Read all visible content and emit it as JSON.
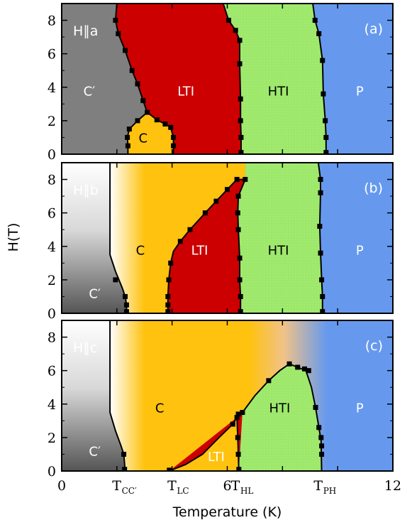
{
  "chart_data": {
    "type": "area",
    "title": "",
    "xlabel": "Temperature (K)",
    "ylabel": "H(T)",
    "xlim": [
      0,
      12
    ],
    "ylim": [
      0,
      9
    ],
    "x_tick_labels": [
      "0",
      "6",
      "12"
    ],
    "x_ticks": [
      0,
      6,
      12
    ],
    "transition_labels": [
      {
        "main": "T",
        "sub": "CC′",
        "x": 2.2
      },
      {
        "main": "T",
        "sub": "LC",
        "x": 4.2
      },
      {
        "main": "T",
        "sub": "HL",
        "x": 6.5
      },
      {
        "main": "T",
        "sub": "PH",
        "x": 9.5
      }
    ],
    "y_ticks": [
      0,
      2,
      4,
      6,
      8
    ],
    "y_tick_labels": [
      "0",
      "2",
      "4",
      "6",
      "8"
    ],
    "colors": {
      "C_prime": "#7f7f7f",
      "C": "#ffc20e",
      "LTI": "#cc0000",
      "HTI": "#9de86a",
      "P": "#6699ee",
      "marker": "#000000"
    },
    "panels": [
      {
        "id": "a",
        "panel_label": "(a)",
        "field_label": "H∥a",
        "phases": [
          {
            "name": "C′",
            "label_pos": [
              1.0,
              3.8
            ]
          },
          {
            "name": "C",
            "label_pos": [
              2.95,
              1.0
            ]
          },
          {
            "name": "LTI",
            "label_pos": [
              4.5,
              3.8
            ]
          },
          {
            "name": "HTI",
            "label_pos": [
              7.85,
              3.8
            ]
          },
          {
            "name": "P",
            "label_pos": [
              10.8,
              3.8
            ]
          }
        ],
        "boundaries": {
          "Cprime_LTI": [
            [
              2.0,
              9
            ],
            [
              1.95,
              8
            ],
            [
              2.05,
              7.2
            ],
            [
              2.3,
              6.2
            ],
            [
              2.55,
              5.0
            ],
            [
              2.75,
              4.2
            ],
            [
              2.95,
              3.2
            ],
            [
              3.1,
              2.5
            ]
          ],
          "Cprime_C": [
            [
              3.1,
              2.5
            ],
            [
              2.75,
              2.0
            ],
            [
              2.45,
              1.5
            ],
            [
              2.38,
              1.0
            ],
            [
              2.4,
              0.5
            ],
            [
              2.4,
              0
            ]
          ],
          "C_LTI": [
            [
              3.1,
              2.5
            ],
            [
              3.45,
              2.05
            ],
            [
              3.75,
              1.8
            ],
            [
              3.95,
              1.6
            ],
            [
              4.05,
              1.0
            ],
            [
              4.05,
              0.5
            ],
            [
              4.05,
              0
            ]
          ],
          "LTI_HTI": [
            [
              5.85,
              9
            ],
            [
              6.05,
              8.0
            ],
            [
              6.3,
              7.4
            ],
            [
              6.45,
              6.8
            ],
            [
              6.45,
              5.4
            ],
            [
              6.48,
              3.3
            ],
            [
              6.48,
              2.0
            ],
            [
              6.5,
              1.0
            ],
            [
              6.5,
              0
            ]
          ],
          "HTI_P": [
            [
              9.1,
              9
            ],
            [
              9.18,
              8.0
            ],
            [
              9.32,
              7.2
            ],
            [
              9.45,
              5.6
            ],
            [
              9.48,
              3.6
            ],
            [
              9.55,
              2.0
            ],
            [
              9.58,
              1.0
            ],
            [
              9.58,
              0
            ]
          ]
        },
        "markers": [
          [
            1.95,
            8
          ],
          [
            2.05,
            7.2
          ],
          [
            2.3,
            6.2
          ],
          [
            2.55,
            5.0
          ],
          [
            2.75,
            4.2
          ],
          [
            2.95,
            3.2
          ],
          [
            3.1,
            2.5
          ],
          [
            2.75,
            2.0
          ],
          [
            2.45,
            1.5
          ],
          [
            2.38,
            1.0
          ],
          [
            2.4,
            0.5
          ],
          [
            3.45,
            2.05
          ],
          [
            3.75,
            1.8
          ],
          [
            3.95,
            1.6
          ],
          [
            4.05,
            1.0
          ],
          [
            4.05,
            0.5
          ],
          [
            6.05,
            8.0
          ],
          [
            6.3,
            7.4
          ],
          [
            6.45,
            6.8
          ],
          [
            6.45,
            5.4
          ],
          [
            6.48,
            3.3
          ],
          [
            6.48,
            2.0
          ],
          [
            6.5,
            1.0
          ],
          [
            6.5,
            0.1
          ],
          [
            9.18,
            8.0
          ],
          [
            9.32,
            7.2
          ],
          [
            9.45,
            5.6
          ],
          [
            9.48,
            3.6
          ],
          [
            9.55,
            2.0
          ],
          [
            9.58,
            1.0
          ],
          [
            9.58,
            0.1
          ]
        ]
      },
      {
        "id": "b",
        "panel_label": "(b)",
        "field_label": "H∥b",
        "phases": [
          {
            "name": "C′",
            "label_pos": [
              1.2,
              1.2
            ]
          },
          {
            "name": "C",
            "label_pos": [
              2.85,
              3.8
            ]
          },
          {
            "name": "LTI",
            "label_pos": [
              5.0,
              3.8
            ]
          },
          {
            "name": "HTI",
            "label_pos": [
              7.85,
              3.8
            ]
          },
          {
            "name": "P",
            "label_pos": [
              10.8,
              3.8
            ]
          }
        ],
        "boundaries": {
          "Cprime_C": [
            [
              1.75,
              9
            ],
            [
              1.75,
              3.5
            ],
            [
              1.95,
              2.5
            ],
            [
              2.2,
              1.5
            ],
            [
              2.3,
              1.0
            ],
            [
              2.35,
              0.5
            ],
            [
              2.35,
              0
            ]
          ],
          "C_LTI": [
            [
              3.85,
              0
            ],
            [
              3.85,
              0.5
            ],
            [
              3.85,
              1.0
            ],
            [
              3.88,
              2.0
            ],
            [
              3.95,
              3.0
            ],
            [
              4.05,
              3.7
            ],
            [
              4.3,
              4.3
            ],
            [
              4.65,
              5.0
            ],
            [
              5.2,
              6.0
            ],
            [
              5.6,
              6.7
            ],
            [
              6.0,
              7.4
            ],
            [
              6.35,
              8.0
            ],
            [
              6.65,
              8.0
            ]
          ],
          "LTI_HTI": [
            [
              6.65,
              8.0
            ],
            [
              6.4,
              7.0
            ],
            [
              6.38,
              6.0
            ],
            [
              6.4,
              5.0
            ],
            [
              6.45,
              3.3
            ],
            [
              6.45,
              2.0
            ],
            [
              6.48,
              1.0
            ],
            [
              6.48,
              0
            ]
          ],
          "HTI_P": [
            [
              9.3,
              9
            ],
            [
              9.38,
              8.0
            ],
            [
              9.38,
              7.2
            ],
            [
              9.35,
              5.2
            ],
            [
              9.38,
              3.6
            ],
            [
              9.42,
              2.0
            ],
            [
              9.45,
              1.0
            ],
            [
              9.45,
              0
            ]
          ]
        },
        "markers": [
          [
            1.95,
            2.0
          ],
          [
            2.3,
            1.0
          ],
          [
            2.35,
            0.5
          ],
          [
            2.35,
            0.1
          ],
          [
            3.85,
            0.1
          ],
          [
            3.85,
            0.5
          ],
          [
            3.85,
            1.0
          ],
          [
            3.88,
            2.0
          ],
          [
            3.95,
            3.0
          ],
          [
            4.3,
            4.3
          ],
          [
            4.65,
            5.0
          ],
          [
            5.2,
            6.0
          ],
          [
            5.6,
            6.7
          ],
          [
            6.0,
            7.4
          ],
          [
            6.35,
            8.0
          ],
          [
            6.65,
            8.0
          ],
          [
            6.4,
            7.0
          ],
          [
            6.38,
            6.0
          ],
          [
            6.4,
            5.0
          ],
          [
            6.45,
            3.3
          ],
          [
            6.45,
            2.0
          ],
          [
            6.48,
            1.0
          ],
          [
            6.48,
            0.1
          ],
          [
            9.38,
            8.0
          ],
          [
            9.38,
            7.2
          ],
          [
            9.35,
            5.2
          ],
          [
            9.38,
            3.6
          ],
          [
            9.42,
            2.0
          ],
          [
            9.45,
            1.0
          ],
          [
            9.45,
            0.1
          ]
        ]
      },
      {
        "id": "c",
        "panel_label": "(c)",
        "field_label": "H∥c",
        "phases": [
          {
            "name": "C′",
            "label_pos": [
              1.2,
              1.2
            ]
          },
          {
            "name": "C",
            "label_pos": [
              3.55,
              3.8
            ]
          },
          {
            "name": "LTI",
            "label_pos": [
              5.6,
              0.9
            ]
          },
          {
            "name": "HTI",
            "label_pos": [
              7.9,
              3.8
            ]
          },
          {
            "name": "P",
            "label_pos": [
              10.8,
              3.8
            ]
          }
        ],
        "boundaries": {
          "Cprime_C": [
            [
              1.75,
              9
            ],
            [
              1.75,
              3.5
            ],
            [
              1.95,
              2.4
            ],
            [
              2.15,
              1.5
            ],
            [
              2.25,
              1.0
            ],
            [
              2.3,
              0
            ]
          ],
          "LTI_C": [
            [
              3.9,
              0
            ],
            [
              4.5,
              0.4
            ],
            [
              5.1,
              1.0
            ],
            [
              5.7,
              2.0
            ],
            [
              6.2,
              2.8
            ],
            [
              6.35,
              3.2
            ],
            [
              6.55,
              3.5
            ]
          ],
          "LTI_HTI": [
            [
              6.35,
              3.2
            ],
            [
              6.38,
              2.0
            ],
            [
              6.4,
              1.0
            ],
            [
              6.42,
              0
            ]
          ],
          "HTI_C": [
            [
              6.55,
              3.5
            ],
            [
              7.0,
              4.5
            ],
            [
              7.5,
              5.4
            ],
            [
              7.9,
              6.0
            ],
            [
              8.25,
              6.4
            ],
            [
              8.55,
              6.2
            ],
            [
              8.85,
              6.0
            ],
            [
              9.05,
              5.0
            ],
            [
              9.2,
              3.8
            ],
            [
              9.32,
              2.6
            ],
            [
              9.4,
              1.8
            ],
            [
              9.42,
              0
            ]
          ]
        },
        "markers": [
          [
            2.25,
            1.0
          ],
          [
            2.28,
            0.1
          ],
          [
            3.9,
            0.05
          ],
          [
            6.2,
            2.8
          ],
          [
            6.35,
            3.2
          ],
          [
            6.4,
            3.4
          ],
          [
            6.55,
            3.5
          ],
          [
            6.38,
            2.0
          ],
          [
            6.4,
            1.0
          ],
          [
            6.42,
            0.1
          ],
          [
            7.5,
            5.4
          ],
          [
            8.25,
            6.4
          ],
          [
            8.55,
            6.2
          ],
          [
            8.8,
            6.1
          ],
          [
            8.95,
            6.0
          ],
          [
            9.2,
            3.8
          ],
          [
            9.32,
            2.6
          ],
          [
            9.4,
            2.0
          ],
          [
            9.42,
            1.5
          ],
          [
            9.42,
            1.0
          ]
        ]
      }
    ]
  }
}
